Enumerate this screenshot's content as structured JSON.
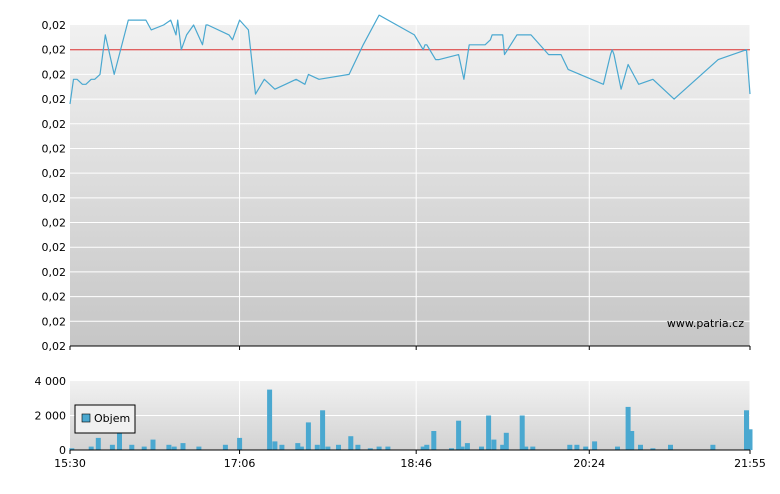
{
  "watermark": "www.patria.cz",
  "chart_data": [
    {
      "type": "line",
      "title": "",
      "xlabel": "",
      "ylabel": "",
      "x_ticks": [
        "15:30",
        "17:06",
        "18:46",
        "20:24",
        "21:55"
      ],
      "xlim": [
        "15:30",
        "21:55"
      ],
      "y_tick_labels": [
        "0,02",
        "0,02",
        "0,02",
        "0,02",
        "0,02",
        "0,02",
        "0,02",
        "0,02",
        "0,02",
        "0,02",
        "0,02",
        "0,02",
        "0,02",
        "0,02"
      ],
      "ylim": [
        0.015,
        0.0215
      ],
      "reference_line": 0.021,
      "grid": true,
      "colors": {
        "line": "#4aa8d0",
        "reference": "#e06060",
        "grid": "#ffffff"
      },
      "series": [
        {
          "x": [
            "15:30",
            "15:32",
            "15:34",
            "15:37",
            "15:39",
            "15:42",
            "15:44",
            "15:47",
            "15:50",
            "15:55",
            "16:03",
            "16:13",
            "16:16",
            "16:23",
            "16:27",
            "16:30",
            "16:31",
            "16:33",
            "16:36",
            "16:40",
            "16:45",
            "16:47",
            "16:48",
            "17:00",
            "17:02",
            "17:06",
            "17:11",
            "17:15",
            "17:20",
            "17:26",
            "17:32",
            "17:38",
            "17:43",
            "17:45",
            "17:51",
            "18:08",
            "18:16",
            "18:25",
            "18:45",
            "18:50",
            "18:51",
            "18:52",
            "18:57",
            "18:59",
            "19:10",
            "19:13",
            "19:16",
            "19:25",
            "19:28",
            "19:29",
            "19:35",
            "19:36",
            "19:43",
            "19:51",
            "20:01",
            "20:08",
            "20:12",
            "20:32",
            "20:36",
            "20:37",
            "20:38",
            "20:42",
            "20:46",
            "20:52",
            "21:00",
            "21:12",
            "21:37",
            "21:53",
            "21:55"
          ],
          "y": [
            0.0199,
            0.0204,
            0.0204,
            0.0203,
            0.0203,
            0.0204,
            0.0204,
            0.0205,
            0.0213,
            0.0205,
            0.0216,
            0.0216,
            0.0214,
            0.0215,
            0.0216,
            0.0213,
            0.0216,
            0.021,
            0.0213,
            0.0215,
            0.0211,
            0.0215,
            0.0215,
            0.0213,
            0.0212,
            0.0216,
            0.0214,
            0.0201,
            0.0204,
            0.0202,
            0.0203,
            0.0204,
            0.0203,
            0.0205,
            0.0204,
            0.0205,
            0.0211,
            0.0217,
            0.0213,
            0.021,
            0.0211,
            0.0211,
            0.0208,
            0.0208,
            0.0209,
            0.0204,
            0.0211,
            0.0211,
            0.0212,
            0.0213,
            0.0213,
            0.0209,
            0.0213,
            0.0213,
            0.0209,
            0.0209,
            0.0206,
            0.0203,
            0.0209,
            0.021,
            0.0209,
            0.0202,
            0.0207,
            0.0203,
            0.0204,
            0.02,
            0.0208,
            0.021,
            0.0201
          ]
        }
      ]
    },
    {
      "type": "bar",
      "title": "",
      "xlabel": "",
      "ylabel": "",
      "x_ticks": [
        "15:30",
        "17:06",
        "18:46",
        "20:24",
        "21:55"
      ],
      "y_ticks": [
        "4 000",
        "2 000",
        "0"
      ],
      "ylim": [
        0,
        4000
      ],
      "grid": true,
      "legend": {
        "placement": "left",
        "label": "Objem"
      },
      "colors": {
        "bar": "#4aa8d0"
      },
      "series": [
        {
          "name": "Objem",
          "x": [
            "15:31",
            "15:42",
            "15:46",
            "15:54",
            "15:58",
            "16:05",
            "16:12",
            "16:17",
            "16:26",
            "16:29",
            "16:34",
            "16:43",
            "16:58",
            "17:06",
            "17:23",
            "17:26",
            "17:30",
            "17:39",
            "17:41",
            "17:45",
            "17:50",
            "17:53",
            "17:56",
            "18:02",
            "18:09",
            "18:13",
            "18:20",
            "18:25",
            "18:30",
            "18:50",
            "18:52",
            "18:56",
            "19:06",
            "19:10",
            "19:12",
            "19:15",
            "19:23",
            "19:27",
            "19:30",
            "19:35",
            "19:37",
            "19:46",
            "19:48",
            "19:52",
            "20:13",
            "20:17",
            "20:22",
            "20:27",
            "20:40",
            "20:46",
            "20:48",
            "20:53",
            "21:00",
            "21:10",
            "21:34",
            "21:53",
            "21:55"
          ],
          "values": [
            100,
            200,
            700,
            300,
            1100,
            300,
            200,
            600,
            300,
            200,
            400,
            200,
            300,
            700,
            3500,
            500,
            300,
            400,
            200,
            1600,
            300,
            2300,
            200,
            300,
            800,
            300,
            100,
            200,
            200,
            200,
            300,
            1100,
            100,
            1700,
            200,
            400,
            200,
            2000,
            600,
            300,
            1000,
            2000,
            200,
            200,
            300,
            300,
            200,
            500,
            200,
            2500,
            1100,
            300,
            100,
            300,
            300,
            2300,
            1200
          ]
        }
      ]
    }
  ]
}
